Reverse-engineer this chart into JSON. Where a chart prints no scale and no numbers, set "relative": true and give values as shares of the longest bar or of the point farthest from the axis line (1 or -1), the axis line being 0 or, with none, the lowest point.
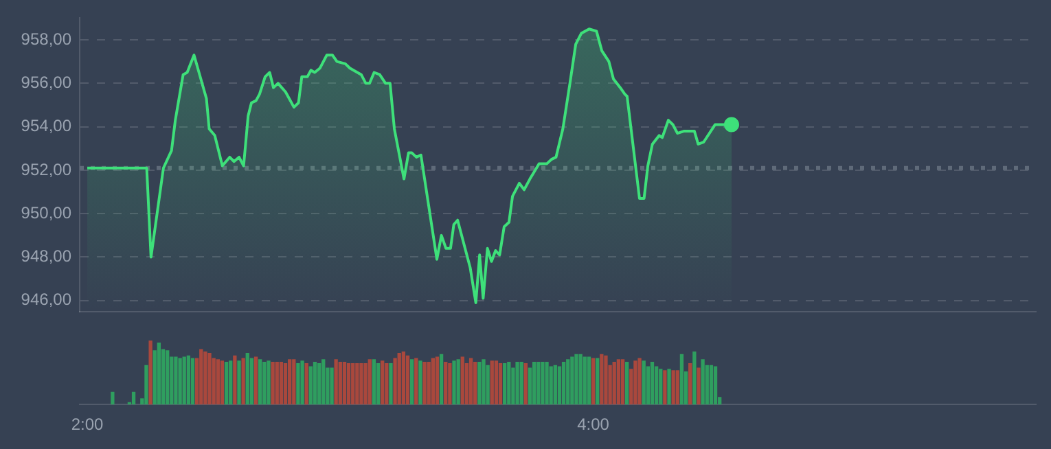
{
  "chart_data": [
    {
      "type": "area",
      "xlim": [
        1.97,
        5.75
      ],
      "ylim": [
        945.5,
        959
      ],
      "yticks": [
        {
          "value": 946,
          "label": "946,00"
        },
        {
          "value": 948,
          "label": "948,00"
        },
        {
          "value": 950,
          "label": "950,00"
        },
        {
          "value": 952,
          "label": "952,00"
        },
        {
          "value": 954,
          "label": "954,00"
        },
        {
          "value": 956,
          "label": "956,00"
        },
        {
          "value": 958,
          "label": "958,00"
        }
      ],
      "tick_labels": "y",
      "grid": "y",
      "marker": "none",
      "line_style": "solid",
      "legend": false,
      "ref_lines": [
        {
          "axis": "y",
          "value": 952.1,
          "color": "#5f6a79",
          "line_style": "dotted"
        }
      ],
      "series": [
        {
          "color": "#3ee07a",
          "x": [
            2.0,
            2.235,
            2.252,
            2.301,
            2.333,
            2.348,
            2.379,
            2.395,
            2.422,
            2.471,
            2.482,
            2.504,
            2.534,
            2.563,
            2.58,
            2.6,
            2.618,
            2.636,
            2.649,
            2.667,
            2.681,
            2.703,
            2.721,
            2.736,
            2.754,
            2.784,
            2.817,
            2.835,
            2.848,
            2.87,
            2.884,
            2.899,
            2.92,
            2.947,
            2.969,
            2.987,
            3.02,
            3.038,
            3.083,
            3.101,
            3.116,
            3.134,
            3.156,
            3.179,
            3.197,
            3.214,
            3.252,
            3.27,
            3.283,
            3.301,
            3.319,
            3.382,
            3.4,
            3.418,
            3.436,
            3.449,
            3.464,
            3.514,
            3.536,
            3.551,
            3.565,
            3.582,
            3.598,
            3.614,
            3.63,
            3.648,
            3.667,
            3.681,
            3.708,
            3.727,
            3.75,
            3.786,
            3.817,
            3.835,
            3.853,
            3.88,
            3.908,
            3.931,
            3.953,
            3.984,
            4.013,
            4.034,
            4.062,
            4.08,
            4.107,
            4.125,
            4.134,
            4.183,
            4.201,
            4.216,
            4.234,
            4.261,
            4.273,
            4.297,
            4.315,
            4.333,
            4.36,
            4.4,
            4.415,
            4.437,
            4.482,
            4.547
          ],
          "values": [
            952.1,
            952.1,
            948.0,
            952.1,
            952.9,
            954.3,
            956.4,
            956.5,
            957.3,
            955.3,
            953.9,
            953.6,
            952.2,
            952.6,
            952.4,
            952.6,
            952.2,
            954.5,
            955.1,
            955.2,
            955.5,
            956.3,
            956.5,
            955.8,
            956.0,
            955.6,
            954.9,
            955.1,
            956.3,
            956.3,
            956.6,
            956.5,
            956.7,
            957.3,
            957.3,
            957.0,
            956.9,
            956.7,
            956.4,
            956.0,
            956.0,
            956.5,
            956.4,
            956.0,
            956.0,
            953.9,
            951.6,
            952.8,
            952.8,
            952.6,
            952.7,
            947.9,
            949.0,
            948.4,
            948.4,
            949.5,
            949.7,
            947.5,
            945.9,
            948.1,
            946.1,
            948.4,
            947.8,
            948.3,
            948.1,
            949.4,
            949.6,
            950.8,
            951.4,
            951.1,
            951.6,
            952.3,
            952.3,
            952.5,
            952.6,
            953.9,
            956.0,
            957.8,
            958.3,
            958.5,
            958.4,
            957.5,
            957.0,
            956.2,
            955.8,
            955.5,
            955.4,
            950.7,
            950.7,
            952.2,
            953.2,
            953.6,
            953.5,
            954.3,
            954.1,
            953.7,
            953.8,
            953.8,
            953.2,
            953.3,
            954.1,
            954.1
          ]
        },
        {
          "type": "scatter",
          "marker": "circle",
          "color": "#3ee07a",
          "x": [
            4.547
          ],
          "values": [
            954.1
          ]
        }
      ]
    },
    {
      "type": "bar",
      "relative": true,
      "xlim": [
        1.97,
        5.75
      ],
      "xticks": [
        {
          "value": 2,
          "label": "2:00"
        },
        {
          "value": 4,
          "label": "4:00"
        }
      ],
      "tick_labels": "x",
      "legend": false,
      "x": [
        2.1,
        2.1667,
        2.1833,
        2.2167,
        2.2333,
        2.25,
        2.2667,
        2.2833,
        2.3,
        2.3167,
        2.3333,
        2.35,
        2.3667,
        2.3833,
        2.4,
        2.4167,
        2.4333,
        2.45,
        2.4667,
        2.4833,
        2.5,
        2.5167,
        2.5333,
        2.55,
        2.5667,
        2.5833,
        2.6,
        2.6167,
        2.6333,
        2.65,
        2.6667,
        2.6833,
        2.7,
        2.7167,
        2.7333,
        2.75,
        2.7667,
        2.7833,
        2.8,
        2.8167,
        2.8333,
        2.85,
        2.8667,
        2.8833,
        2.9,
        2.9167,
        2.9333,
        2.95,
        2.9667,
        2.9833,
        3,
        3.0167,
        3.0333,
        3.05,
        3.0667,
        3.0833,
        3.1,
        3.1167,
        3.1333,
        3.15,
        3.1667,
        3.1833,
        3.2,
        3.2167,
        3.2333,
        3.25,
        3.2667,
        3.2833,
        3.3,
        3.3167,
        3.3333,
        3.35,
        3.3667,
        3.3833,
        3.4,
        3.4167,
        3.4333,
        3.45,
        3.4667,
        3.4833,
        3.5,
        3.5167,
        3.5333,
        3.55,
        3.5667,
        3.5833,
        3.6,
        3.6167,
        3.6333,
        3.65,
        3.6667,
        3.6833,
        3.7,
        3.7167,
        3.7333,
        3.75,
        3.7667,
        3.7833,
        3.8,
        3.8167,
        3.8333,
        3.85,
        3.8667,
        3.8833,
        3.9,
        3.9167,
        3.9333,
        3.95,
        3.9667,
        3.9833,
        4,
        4.0167,
        4.0333,
        4.05,
        4.0667,
        4.0833,
        4.1,
        4.1167,
        4.1333,
        4.15,
        4.1667,
        4.1833,
        4.2,
        4.2167,
        4.2333,
        4.25,
        4.2667,
        4.2833,
        4.3,
        4.3167,
        4.3333,
        4.35,
        4.3667,
        4.3833,
        4.4,
        4.4167,
        4.4333,
        4.45,
        4.4667,
        4.4833,
        4.5
      ],
      "values": [
        0.19,
        0.03,
        0.19,
        0.09,
        0.61,
        1.0,
        0.84,
        0.96,
        0.86,
        0.84,
        0.74,
        0.74,
        0.72,
        0.74,
        0.76,
        0.72,
        0.72,
        0.86,
        0.82,
        0.8,
        0.72,
        0.7,
        0.68,
        0.66,
        0.68,
        0.76,
        0.68,
        0.72,
        0.8,
        0.72,
        0.74,
        0.7,
        0.66,
        0.68,
        0.66,
        0.66,
        0.66,
        0.64,
        0.7,
        0.7,
        0.64,
        0.68,
        0.64,
        0.59,
        0.66,
        0.64,
        0.7,
        0.57,
        0.57,
        0.7,
        0.66,
        0.66,
        0.64,
        0.64,
        0.64,
        0.64,
        0.64,
        0.7,
        0.7,
        0.64,
        0.68,
        0.64,
        0.64,
        0.72,
        0.8,
        0.82,
        0.76,
        0.7,
        0.72,
        0.68,
        0.66,
        0.66,
        0.72,
        0.74,
        0.78,
        0.66,
        0.64,
        0.68,
        0.7,
        0.74,
        0.64,
        0.72,
        0.66,
        0.66,
        0.7,
        0.61,
        0.68,
        0.68,
        0.64,
        0.64,
        0.66,
        0.57,
        0.66,
        0.66,
        0.64,
        0.57,
        0.66,
        0.66,
        0.66,
        0.66,
        0.59,
        0.61,
        0.59,
        0.66,
        0.7,
        0.74,
        0.78,
        0.78,
        0.74,
        0.74,
        0.72,
        0.72,
        0.78,
        0.76,
        0.61,
        0.66,
        0.7,
        0.7,
        0.66,
        0.55,
        0.68,
        0.72,
        0.68,
        0.59,
        0.66,
        0.59,
        0.55,
        0.53,
        0.55,
        0.53,
        0.53,
        0.78,
        0.51,
        0.64,
        0.82,
        0.57,
        0.7,
        0.61,
        0.61,
        0.59,
        0.11
      ],
      "colors": [
        "#2f9e5f",
        "#2f9e5f",
        "#2f9e5f",
        "#2f9e5f",
        "#2f9e5f",
        "#a9483d",
        "#2f9e5f",
        "#2f9e5f",
        "#2f9e5f",
        "#2f9e5f",
        "#2f9e5f",
        "#2f9e5f",
        "#2f9e5f",
        "#2f9e5f",
        "#2f9e5f",
        "#2f9e5f",
        "#a9483d",
        "#a9483d",
        "#a9483d",
        "#a9483d",
        "#a9483d",
        "#a9483d",
        "#a9483d",
        "#2f9e5f",
        "#2f9e5f",
        "#a9483d",
        "#2f9e5f",
        "#a9483d",
        "#2f9e5f",
        "#2f9e5f",
        "#a9483d",
        "#2f9e5f",
        "#2f9e5f",
        "#2f9e5f",
        "#a9483d",
        "#a9483d",
        "#a9483d",
        "#a9483d",
        "#a9483d",
        "#a9483d",
        "#2f9e5f",
        "#2f9e5f",
        "#a9483d",
        "#2f9e5f",
        "#2f9e5f",
        "#2f9e5f",
        "#2f9e5f",
        "#2f9e5f",
        "#2f9e5f",
        "#a9483d",
        "#a9483d",
        "#a9483d",
        "#a9483d",
        "#a9483d",
        "#a9483d",
        "#a9483d",
        "#a9483d",
        "#a9483d",
        "#2f9e5f",
        "#2f9e5f",
        "#a9483d",
        "#a9483d",
        "#2f9e5f",
        "#a9483d",
        "#a9483d",
        "#a9483d",
        "#a9483d",
        "#2f9e5f",
        "#a9483d",
        "#2f9e5f",
        "#a9483d",
        "#a9483d",
        "#a9483d",
        "#a9483d",
        "#2f9e5f",
        "#a9483d",
        "#a9483d",
        "#2f9e5f",
        "#2f9e5f",
        "#a9483d",
        "#a9483d",
        "#a9483d",
        "#a9483d",
        "#2f9e5f",
        "#2f9e5f",
        "#2f9e5f",
        "#a9483d",
        "#a9483d",
        "#a9483d",
        "#2f9e5f",
        "#2f9e5f",
        "#2f9e5f",
        "#2f9e5f",
        "#2f9e5f",
        "#a9483d",
        "#2f9e5f",
        "#2f9e5f",
        "#2f9e5f",
        "#2f9e5f",
        "#2f9e5f",
        "#2f9e5f",
        "#2f9e5f",
        "#2f9e5f",
        "#2f9e5f",
        "#2f9e5f",
        "#2f9e5f",
        "#2f9e5f",
        "#2f9e5f",
        "#2f9e5f",
        "#2f9e5f",
        "#a9483d",
        "#2f9e5f",
        "#a9483d",
        "#a9483d",
        "#a9483d",
        "#a9483d",
        "#a9483d",
        "#a9483d",
        "#2f9e5f",
        "#a9483d",
        "#a9483d",
        "#a9483d",
        "#2f9e5f",
        "#2f9e5f",
        "#2f9e5f",
        "#2f9e5f",
        "#2f9e5f",
        "#a9483d",
        "#2f9e5f",
        "#a9483d",
        "#a9483d",
        "#2f9e5f",
        "#2f9e5f",
        "#a9483d",
        "#2f9e5f",
        "#a9483d",
        "#2f9e5f",
        "#2f9e5f",
        "#2f9e5f",
        "#2f9e5f",
        "#2f9e5f"
      ]
    }
  ]
}
